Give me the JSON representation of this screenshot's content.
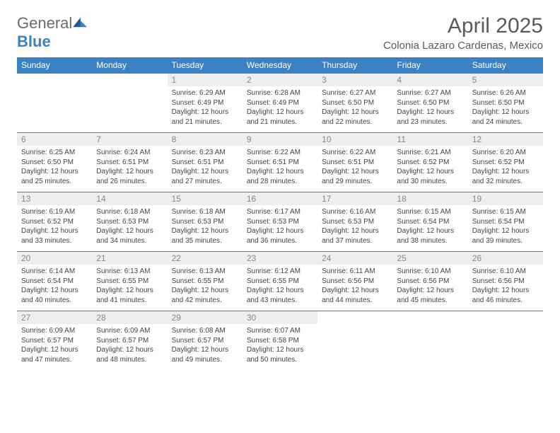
{
  "logo": {
    "general": "General",
    "blue": "Blue"
  },
  "title": "April 2025",
  "location": "Colonia Lazaro Cardenas, Mexico",
  "colors": {
    "header_bg": "#3b82c4",
    "header_text": "#ffffff",
    "numrow_bg": "#eeeeee",
    "numrow_text": "#888888",
    "body_text": "#444444",
    "title_text": "#5a5a5a",
    "logo_gray": "#6b6b6b",
    "logo_blue": "#3b82c4",
    "page_bg": "#ffffff"
  },
  "fonts": {
    "title_size_pt": 22,
    "location_size_pt": 11,
    "dayheader_size_pt": 9,
    "daynum_size_pt": 9,
    "cell_size_pt": 7.5
  },
  "dayNames": [
    "Sunday",
    "Monday",
    "Tuesday",
    "Wednesday",
    "Thursday",
    "Friday",
    "Saturday"
  ],
  "weeks": [
    [
      null,
      null,
      {
        "n": "1",
        "sr": "6:29 AM",
        "ss": "6:49 PM",
        "dl": "12 hours and 21 minutes."
      },
      {
        "n": "2",
        "sr": "6:28 AM",
        "ss": "6:49 PM",
        "dl": "12 hours and 21 minutes."
      },
      {
        "n": "3",
        "sr": "6:27 AM",
        "ss": "6:50 PM",
        "dl": "12 hours and 22 minutes."
      },
      {
        "n": "4",
        "sr": "6:27 AM",
        "ss": "6:50 PM",
        "dl": "12 hours and 23 minutes."
      },
      {
        "n": "5",
        "sr": "6:26 AM",
        "ss": "6:50 PM",
        "dl": "12 hours and 24 minutes."
      }
    ],
    [
      {
        "n": "6",
        "sr": "6:25 AM",
        "ss": "6:50 PM",
        "dl": "12 hours and 25 minutes."
      },
      {
        "n": "7",
        "sr": "6:24 AM",
        "ss": "6:51 PM",
        "dl": "12 hours and 26 minutes."
      },
      {
        "n": "8",
        "sr": "6:23 AM",
        "ss": "6:51 PM",
        "dl": "12 hours and 27 minutes."
      },
      {
        "n": "9",
        "sr": "6:22 AM",
        "ss": "6:51 PM",
        "dl": "12 hours and 28 minutes."
      },
      {
        "n": "10",
        "sr": "6:22 AM",
        "ss": "6:51 PM",
        "dl": "12 hours and 29 minutes."
      },
      {
        "n": "11",
        "sr": "6:21 AM",
        "ss": "6:52 PM",
        "dl": "12 hours and 30 minutes."
      },
      {
        "n": "12",
        "sr": "6:20 AM",
        "ss": "6:52 PM",
        "dl": "12 hours and 32 minutes."
      }
    ],
    [
      {
        "n": "13",
        "sr": "6:19 AM",
        "ss": "6:52 PM",
        "dl": "12 hours and 33 minutes."
      },
      {
        "n": "14",
        "sr": "6:18 AM",
        "ss": "6:53 PM",
        "dl": "12 hours and 34 minutes."
      },
      {
        "n": "15",
        "sr": "6:18 AM",
        "ss": "6:53 PM",
        "dl": "12 hours and 35 minutes."
      },
      {
        "n": "16",
        "sr": "6:17 AM",
        "ss": "6:53 PM",
        "dl": "12 hours and 36 minutes."
      },
      {
        "n": "17",
        "sr": "6:16 AM",
        "ss": "6:53 PM",
        "dl": "12 hours and 37 minutes."
      },
      {
        "n": "18",
        "sr": "6:15 AM",
        "ss": "6:54 PM",
        "dl": "12 hours and 38 minutes."
      },
      {
        "n": "19",
        "sr": "6:15 AM",
        "ss": "6:54 PM",
        "dl": "12 hours and 39 minutes."
      }
    ],
    [
      {
        "n": "20",
        "sr": "6:14 AM",
        "ss": "6:54 PM",
        "dl": "12 hours and 40 minutes."
      },
      {
        "n": "21",
        "sr": "6:13 AM",
        "ss": "6:55 PM",
        "dl": "12 hours and 41 minutes."
      },
      {
        "n": "22",
        "sr": "6:13 AM",
        "ss": "6:55 PM",
        "dl": "12 hours and 42 minutes."
      },
      {
        "n": "23",
        "sr": "6:12 AM",
        "ss": "6:55 PM",
        "dl": "12 hours and 43 minutes."
      },
      {
        "n": "24",
        "sr": "6:11 AM",
        "ss": "6:56 PM",
        "dl": "12 hours and 44 minutes."
      },
      {
        "n": "25",
        "sr": "6:10 AM",
        "ss": "6:56 PM",
        "dl": "12 hours and 45 minutes."
      },
      {
        "n": "26",
        "sr": "6:10 AM",
        "ss": "6:56 PM",
        "dl": "12 hours and 46 minutes."
      }
    ],
    [
      {
        "n": "27",
        "sr": "6:09 AM",
        "ss": "6:57 PM",
        "dl": "12 hours and 47 minutes."
      },
      {
        "n": "28",
        "sr": "6:09 AM",
        "ss": "6:57 PM",
        "dl": "12 hours and 48 minutes."
      },
      {
        "n": "29",
        "sr": "6:08 AM",
        "ss": "6:57 PM",
        "dl": "12 hours and 49 minutes."
      },
      {
        "n": "30",
        "sr": "6:07 AM",
        "ss": "6:58 PM",
        "dl": "12 hours and 50 minutes."
      },
      null,
      null,
      null
    ]
  ],
  "labels": {
    "sunrise": "Sunrise: ",
    "sunset": "Sunset: ",
    "daylight": "Daylight: "
  }
}
